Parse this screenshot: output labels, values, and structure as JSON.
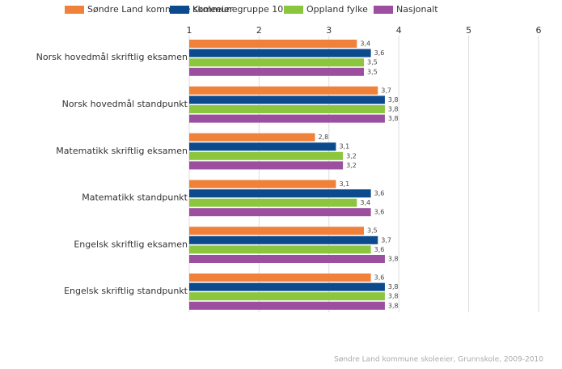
{
  "chart_data": {
    "type": "barh",
    "categories": [
      "Norsk hovedmål skriftlig eksamen",
      "Norsk hovedmål standpunkt",
      "Matematikk skriftlig eksamen",
      "Matematikk standpunkt",
      "Engelsk skriftlig eksamen",
      "Engelsk skriftlig standpunkt"
    ],
    "series": [
      {
        "name": "Søndre Land kommune skoleeier",
        "color": "#f0813a",
        "values": [
          3.4,
          3.7,
          2.8,
          3.1,
          3.5,
          3.6
        ],
        "value_labels": [
          "3,4",
          "3,7",
          "2,8",
          "3,1",
          "3,5",
          "3,6"
        ]
      },
      {
        "name": "Kommunegruppe 10",
        "color": "#0b4a8c",
        "values": [
          3.6,
          3.8,
          3.1,
          3.6,
          3.7,
          3.8
        ],
        "value_labels": [
          "3,6",
          "3,8",
          "3,1",
          "3,6",
          "3,7",
          "3,8"
        ]
      },
      {
        "name": "Oppland fylke",
        "color": "#8cc63f",
        "values": [
          3.5,
          3.8,
          3.2,
          3.4,
          3.6,
          3.8
        ],
        "value_labels": [
          "3,5",
          "3,8",
          "3,2",
          "3,4",
          "3,6",
          "3,8"
        ]
      },
      {
        "name": "Nasjonalt",
        "color": "#9b4f9e",
        "values": [
          3.5,
          3.8,
          3.2,
          3.6,
          3.8,
          3.8
        ],
        "value_labels": [
          "3,5",
          "3,8",
          "3,2",
          "3,6",
          "3,8",
          "3,8"
        ]
      }
    ],
    "xlim": [
      1,
      6
    ],
    "xticks": [
      1,
      2,
      3,
      4,
      5,
      6
    ],
    "grid": true,
    "source": "Søndre Land kommune skoleeier, Grunnskole, 2009-2010"
  }
}
